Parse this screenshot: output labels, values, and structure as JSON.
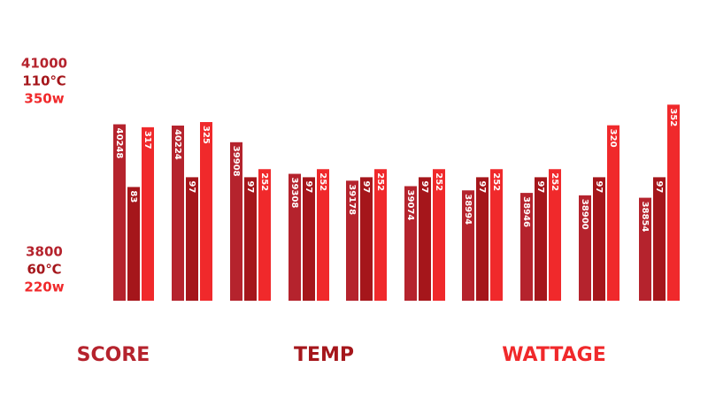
{
  "chart_data": {
    "type": "bar",
    "series": [
      {
        "name": "SCORE",
        "color": "#b5232d",
        "values": [
          40248,
          40224,
          39908,
          39308,
          39178,
          39074,
          38994,
          38946,
          38900,
          38854
        ],
        "ylim": [
          36900,
          41600
        ],
        "axis_labels": [
          "41000",
          "3800"
        ]
      },
      {
        "name": "TEMP",
        "color": "#a5161b",
        "values": [
          83,
          97,
          97,
          97,
          97,
          97,
          97,
          97,
          97,
          97
        ],
        "ylim": [
          -80,
          275
        ],
        "axis_labels": [
          "110℃",
          "60℃"
        ]
      },
      {
        "name": "WATTAGE",
        "color": "#f0292b",
        "values": [
          317,
          325,
          252,
          252,
          252,
          252,
          252,
          252,
          320,
          352
        ],
        "ylim": [
          48,
          432
        ],
        "axis_labels": [
          "350w",
          "220w"
        ]
      }
    ]
  }
}
